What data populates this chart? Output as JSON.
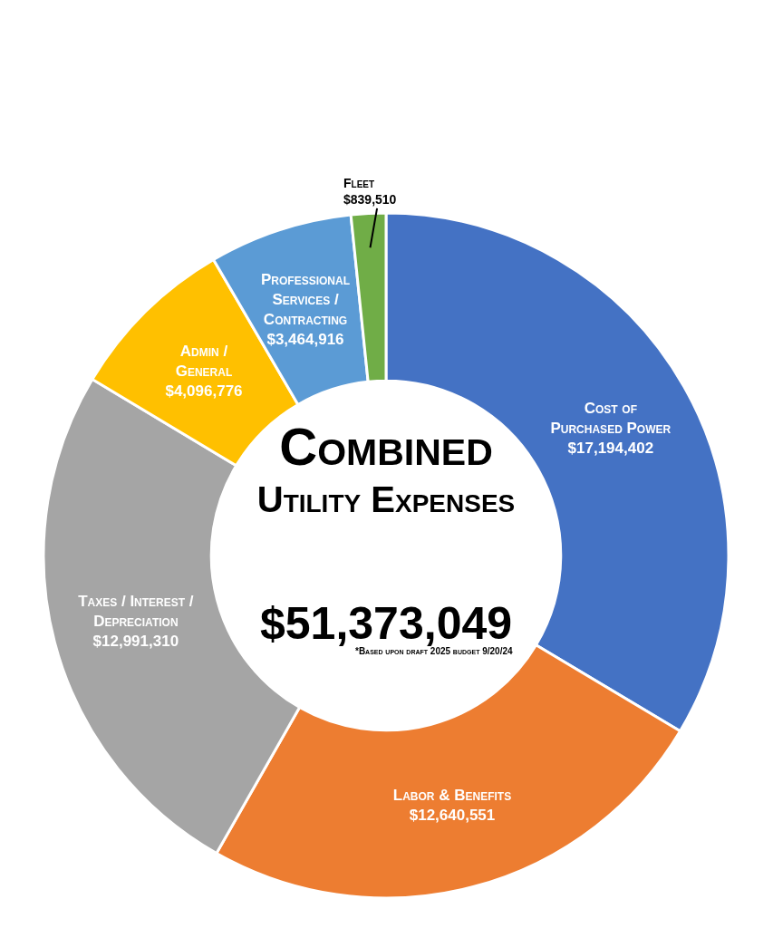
{
  "chart_data": {
    "type": "donut",
    "title": "Combined Utility Expenses",
    "subtitle": "$51,373,049",
    "categories": [
      "Cost of Purchased Power",
      "Labor & Benefits",
      "Taxes / Interest / Depreciation",
      "Admin / General",
      "Professional Services / Contracting",
      "Fleet"
    ],
    "values": [
      17194402,
      12640551,
      12991310,
      4096776,
      3464916,
      839510
    ],
    "colors": [
      "#4472c4",
      "#ed7d31",
      "#a5a5a5",
      "#ffc000",
      "#5b9bd5",
      "#70ad47"
    ],
    "value_labels": [
      "$17,194,402",
      "$12,640,551",
      "$12,991,310",
      "$4,096,776",
      "$3,464,916",
      "$839,510"
    ],
    "annotations": [
      "*Based upon draft 2025 budget 9/20/24"
    ]
  }
}
